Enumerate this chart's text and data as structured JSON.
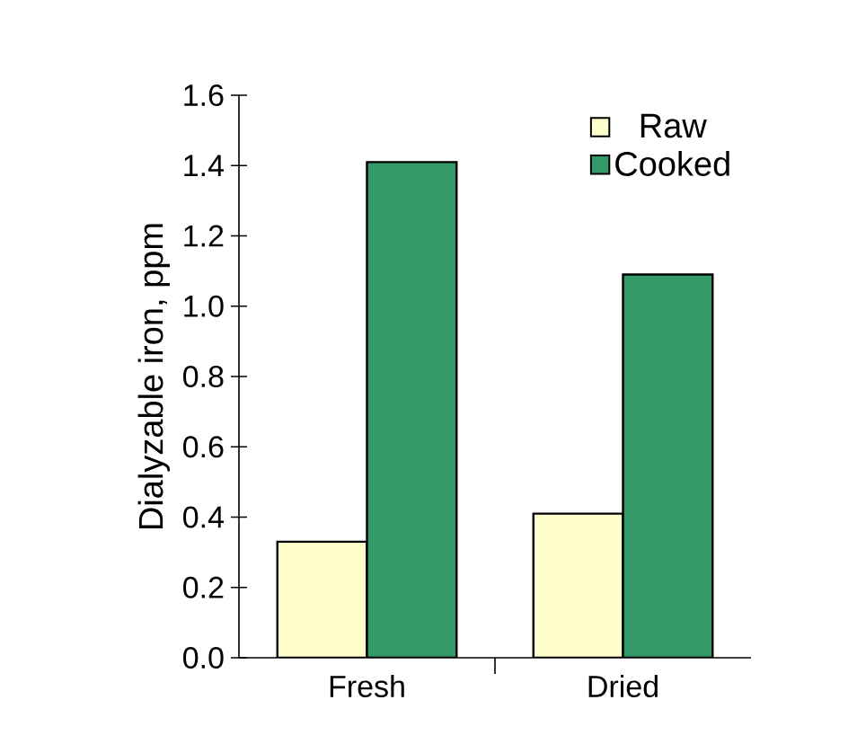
{
  "chart_data": {
    "type": "bar",
    "ylabel": "Dialyzable iron, ppm",
    "categories": [
      "Fresh",
      "Dried"
    ],
    "series": [
      {
        "name": "Raw",
        "color": "#ffffcc",
        "values": [
          0.33,
          0.41
        ]
      },
      {
        "name": "Cooked",
        "color": "#339966",
        "values": [
          1.41,
          1.09
        ]
      }
    ],
    "ylim": [
      0,
      1.6
    ],
    "yticks": [
      {
        "value": 0,
        "label": "0.0"
      },
      {
        "value": 0.2,
        "label": "0.2"
      },
      {
        "value": 0.4,
        "label": "0.4"
      },
      {
        "value": 0.6,
        "label": "0.6"
      },
      {
        "value": 0.8,
        "label": "0.8"
      },
      {
        "value": 1.0,
        "label": "1.0"
      },
      {
        "value": 1.2,
        "label": "1.2"
      },
      {
        "value": 1.4,
        "label": "1.4"
      },
      {
        "value": 1.6,
        "label": "1.6"
      }
    ],
    "legend": "top right",
    "grid": false
  }
}
